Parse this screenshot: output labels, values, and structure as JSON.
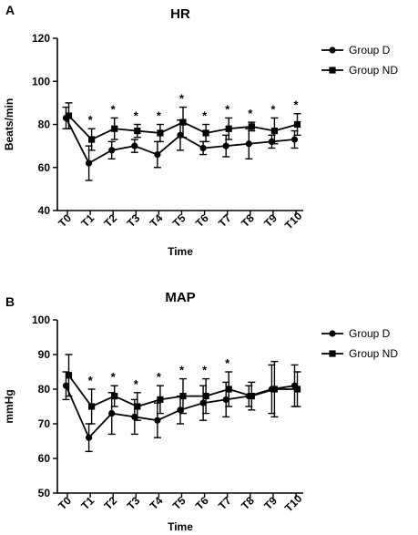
{
  "chart_data": [
    {
      "panel": "A",
      "type": "line",
      "title": "HR",
      "xlabel": "Time",
      "ylabel": "Beats/min",
      "categories": [
        "T0",
        "T1",
        "T2",
        "T3",
        "T4",
        "T5",
        "T6",
        "T7",
        "T8",
        "T9",
        "T10"
      ],
      "ylim": [
        40,
        120
      ],
      "yticks": [
        40,
        60,
        80,
        100,
        120
      ],
      "legend_position": "top-right",
      "series": [
        {
          "name": "Group D",
          "marker": "circle",
          "values": [
            83,
            62,
            68,
            70,
            66,
            75,
            69,
            70,
            71,
            72,
            73
          ],
          "errors": [
            5,
            8,
            4,
            3,
            6,
            7,
            3,
            5,
            7,
            3,
            4
          ]
        },
        {
          "name": "Group ND",
          "marker": "square",
          "values": [
            84,
            73,
            78,
            77,
            76,
            81,
            76,
            78,
            79,
            77,
            80
          ],
          "errors": [
            6,
            5,
            5,
            3,
            4,
            7,
            4,
            5,
            2,
            6,
            5
          ]
        }
      ],
      "significance_marks": [
        "",
        "*",
        "*",
        "*",
        "*",
        "*",
        "*",
        "*",
        "*",
        "*",
        "*"
      ]
    },
    {
      "panel": "B",
      "type": "line",
      "title": "MAP",
      "xlabel": "Time",
      "ylabel": "mmHg",
      "categories": [
        "T0",
        "T1",
        "T2",
        "T3",
        "T4",
        "T5",
        "T6",
        "T7",
        "T8",
        "T9",
        "T10"
      ],
      "ylim": [
        50,
        100
      ],
      "yticks": [
        50,
        60,
        70,
        80,
        90,
        100
      ],
      "legend_position": "top-right",
      "series": [
        {
          "name": "Group D",
          "marker": "circle",
          "values": [
            81,
            66,
            73,
            72,
            71,
            74,
            76,
            77,
            78,
            80,
            81
          ],
          "errors": [
            4,
            4,
            6,
            5,
            5,
            4,
            5,
            5,
            3,
            7,
            6
          ]
        },
        {
          "name": "Group ND",
          "marker": "square",
          "values": [
            84,
            75,
            78,
            75,
            77,
            78,
            78,
            80,
            78,
            80,
            80
          ],
          "errors": [
            6,
            5,
            3,
            4,
            4,
            5,
            5,
            5,
            4,
            8,
            5
          ]
        }
      ],
      "significance_marks": [
        "",
        "*",
        "*",
        "*",
        "*",
        "*",
        "*",
        "*",
        "",
        "",
        ""
      ]
    }
  ]
}
